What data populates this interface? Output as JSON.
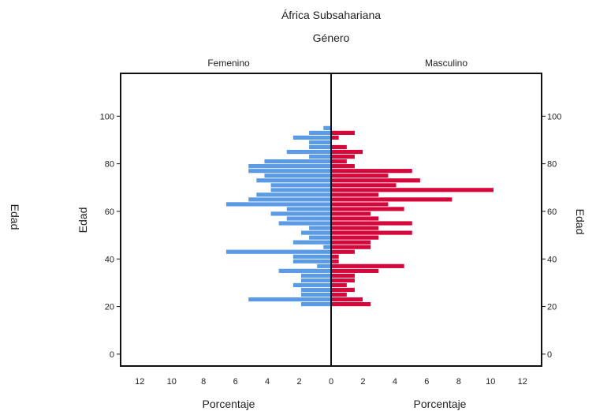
{
  "chart_data": {
    "type": "bar",
    "title": "África Subsahariana",
    "subtitle": "Género",
    "panels": [
      "Femenino",
      "Masculino"
    ],
    "y_label": "Edad",
    "x_label": "Porcentaje",
    "y_ticks": [
      0,
      20,
      40,
      60,
      80,
      100
    ],
    "x_ticks_female": [
      12,
      10,
      8,
      6,
      4,
      2,
      0
    ],
    "x_ticks_male": [
      0,
      2,
      4,
      6,
      8,
      10,
      12
    ],
    "ylim": [
      -5,
      118
    ],
    "xlim": [
      0,
      13.2
    ],
    "colors": {
      "Femenino": "#5b9ae4",
      "Masculino": "#d6083b"
    },
    "series": [
      {
        "name": "Femenino",
        "ages": [
          20,
          22,
          24,
          26,
          28,
          30,
          32,
          34,
          36,
          38,
          40,
          42,
          44,
          46,
          48,
          50,
          52,
          54,
          56,
          58,
          60,
          62,
          64,
          66,
          68,
          70,
          72,
          74,
          76,
          78,
          80,
          82,
          84,
          86,
          88,
          90,
          92,
          94,
          96
        ],
        "values": [
          1.9,
          5.2,
          1.9,
          1.9,
          2.4,
          1.9,
          1.9,
          3.3,
          0.9,
          2.4,
          2.4,
          6.6,
          0.5,
          2.4,
          1.4,
          1.9,
          1.4,
          3.3,
          2.8,
          3.8,
          2.8,
          6.6,
          5.2,
          4.7,
          3.8,
          3.8,
          4.7,
          4.2,
          5.2,
          5.2,
          4.2,
          1.4,
          2.8,
          1.4,
          1.4,
          2.4,
          1.4,
          0.5,
          0
        ]
      },
      {
        "name": "Masculino",
        "ages": [
          20,
          22,
          24,
          26,
          28,
          30,
          32,
          34,
          36,
          38,
          40,
          42,
          44,
          46,
          48,
          50,
          52,
          54,
          56,
          58,
          60,
          62,
          64,
          66,
          68,
          70,
          72,
          74,
          76,
          78,
          80,
          82,
          84,
          86,
          88,
          90,
          92,
          94,
          96
        ],
        "values": [
          2.5,
          2.0,
          1.0,
          1.5,
          1.0,
          1.5,
          1.5,
          3.0,
          4.6,
          0.5,
          0.5,
          1.5,
          2.5,
          2.5,
          3.0,
          5.1,
          3.0,
          5.1,
          3.0,
          2.5,
          4.6,
          3.6,
          7.6,
          3.0,
          10.2,
          4.1,
          5.6,
          3.6,
          5.1,
          1.5,
          1.0,
          1.5,
          2.0,
          1.0,
          0,
          0.5,
          1.5,
          0,
          0
        ]
      }
    ]
  }
}
